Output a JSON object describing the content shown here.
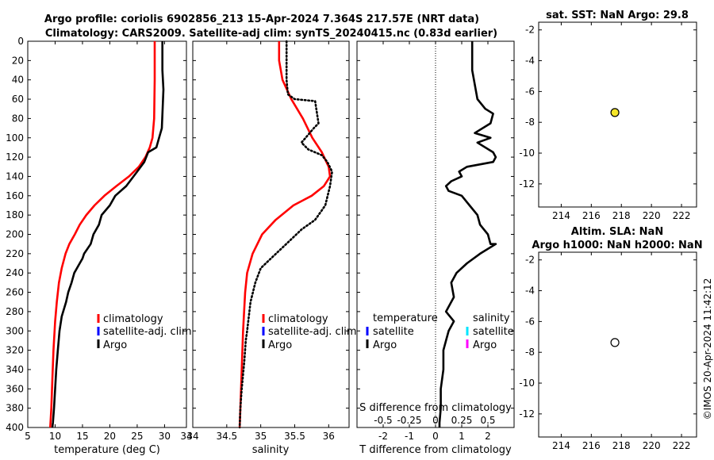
{
  "figure": {
    "title_line1": "Argo profile: coriolis 6902856_213 15-Apr-2024 7.364S 217.57E (NRT data)",
    "title_line2": "Climatology: CARS2009. Satellite-adj clim: synTS_20240415.nc (0.83d earlier)",
    "timestamp": "©IMOS 20-Apr-2024 11:42:12"
  },
  "colors": {
    "climatology": "#ff0000",
    "satellite_adj": "#0000ff",
    "argo": "#000000",
    "sat_salinity": "#00e5ff",
    "argo_salinity_diff": "#ff00ff",
    "sst_marker": "#f5e62a"
  },
  "chart_data": [
    {
      "id": "temperature",
      "type": "line",
      "xlabel": "temperature (deg C)",
      "ylabel": "",
      "xlim": [
        5,
        34
      ],
      "ylim": [
        0,
        400
      ],
      "y_reversed": true,
      "xticks": [
        5,
        10,
        15,
        20,
        25,
        30,
        34
      ],
      "yticks": [
        0,
        20,
        40,
        60,
        80,
        100,
        120,
        140,
        160,
        180,
        200,
        220,
        240,
        260,
        280,
        300,
        320,
        340,
        360,
        380,
        400
      ],
      "legend": [
        "climatology",
        "satellite-adj. clim",
        "Argo"
      ],
      "series": [
        {
          "name": "climatology",
          "color": "#ff0000",
          "style": "solid",
          "x": [
            28.2,
            28.2,
            28.1,
            27.8,
            27.3,
            26.5,
            25.3,
            23.5,
            21.2,
            19.0,
            17.2,
            15.7,
            14.5,
            13.6,
            12.6,
            11.9,
            11.2,
            10.7,
            10.3,
            10.0,
            9.7,
            9.5,
            9.3,
            9.1
          ],
          "y": [
            0,
            40,
            80,
            100,
            110,
            120,
            130,
            140,
            150,
            160,
            170,
            180,
            190,
            200,
            210,
            220,
            235,
            250,
            270,
            290,
            320,
            350,
            380,
            400
          ]
        },
        {
          "name": "Argo",
          "color": "#000000",
          "style": "solid",
          "x": [
            29.6,
            29.6,
            29.8,
            29.5,
            29.0,
            28.5,
            27.0,
            26.3,
            25.0,
            23.0,
            21.0,
            20.0,
            18.5,
            18.0,
            17.0,
            16.5,
            15.3,
            15.0,
            14.5,
            13.5,
            13.0,
            12.4,
            12.0,
            11.2,
            10.8,
            10.5,
            10.2,
            10.0,
            9.8,
            9.6,
            9.5
          ],
          "y": [
            0,
            30,
            50,
            90,
            100,
            110,
            115,
            125,
            135,
            150,
            160,
            170,
            180,
            190,
            200,
            210,
            220,
            225,
            230,
            240,
            250,
            260,
            270,
            285,
            300,
            320,
            340,
            360,
            380,
            395,
            400
          ]
        }
      ]
    },
    {
      "id": "salinity",
      "type": "line",
      "xlabel": "salinity",
      "ylabel": "",
      "xlim": [
        34,
        36.3
      ],
      "ylim": [
        0,
        400
      ],
      "y_reversed": true,
      "xticks": [
        34,
        34.5,
        35,
        35.5,
        36
      ],
      "legend": [
        "climatology",
        "satellite-adj. clim",
        "Argo"
      ],
      "series": [
        {
          "name": "climatology",
          "color": "#ff0000",
          "style": "solid",
          "x": [
            35.27,
            35.27,
            35.32,
            35.45,
            35.62,
            35.76,
            35.9,
            36.0,
            36.02,
            35.93,
            35.75,
            35.48,
            35.22,
            35.02,
            34.88,
            34.8,
            34.77,
            34.74,
            34.72,
            34.7,
            34.69
          ],
          "y": [
            0,
            20,
            40,
            60,
            80,
            100,
            115,
            130,
            140,
            150,
            160,
            170,
            185,
            200,
            220,
            240,
            260,
            300,
            340,
            380,
            400
          ]
        },
        {
          "name": "Argo",
          "color": "#000000",
          "style": "dotted",
          "x": [
            35.38,
            35.38,
            35.4,
            35.5,
            35.8,
            35.85,
            35.78,
            35.66,
            35.6,
            35.7,
            35.9,
            35.98,
            36.05,
            36.02,
            35.95,
            35.8,
            35.6,
            35.45,
            35.3,
            35.15,
            35.0,
            34.92,
            34.85,
            34.8,
            34.78,
            34.76,
            34.72,
            34.7,
            34.69
          ],
          "y": [
            0,
            40,
            55,
            60,
            62,
            85,
            90,
            100,
            105,
            112,
            118,
            125,
            135,
            150,
            170,
            185,
            195,
            205,
            215,
            225,
            235,
            250,
            270,
            300,
            310,
            330,
            360,
            380,
            400
          ]
        }
      ]
    },
    {
      "id": "difference",
      "type": "line",
      "xlabel": "T difference from climatology",
      "xlabel_top": "S difference from climatology",
      "ylabel": "",
      "xlim": [
        -3,
        3
      ],
      "ylim": [
        0,
        400
      ],
      "y_reversed": true,
      "xticks": [
        -2,
        -1,
        0,
        1,
        2
      ],
      "xticks_top": [
        "-0.5",
        "-0.25",
        "0",
        "0.25",
        "0.5"
      ],
      "legend_temperature_title": "temperature",
      "legend_salinity_title": "salinity",
      "legend_temperature": [
        "satellite",
        "Argo"
      ],
      "legend_salinity": [
        "satellite",
        "Argo"
      ],
      "series": [
        {
          "name": "Argo T diff",
          "color": "#000000",
          "style": "solid",
          "x": [
            1.4,
            1.4,
            1.6,
            1.9,
            2.2,
            2.1,
            1.5,
            2.1,
            1.6,
            2.2,
            2.3,
            2.2,
            1.2,
            0.9,
            1.0,
            0.6,
            0.4,
            0.5,
            1.0,
            1.3,
            1.6,
            1.7,
            2.0,
            2.1,
            2.3,
            1.7,
            1.2,
            0.8,
            0.6,
            0.7,
            0.4,
            0.7,
            0.5,
            0.4,
            0.3,
            0.3,
            0.2,
            0.2,
            0.15,
            0.15
          ],
          "y": [
            0,
            30,
            60,
            70,
            75,
            85,
            95,
            100,
            105,
            115,
            120,
            125,
            130,
            135,
            140,
            145,
            150,
            155,
            160,
            170,
            180,
            190,
            200,
            210,
            210,
            220,
            230,
            240,
            250,
            265,
            280,
            290,
            300,
            310,
            320,
            340,
            360,
            380,
            395,
            400
          ]
        }
      ]
    },
    {
      "id": "sst",
      "type": "scatter",
      "title": "sat. SST: NaN Argo: 29.8",
      "xlabel": "",
      "ylabel": "",
      "xlim": [
        212.5,
        223
      ],
      "ylim": [
        -13.5,
        -1.5
      ],
      "xticks": [
        214,
        216,
        218,
        220,
        222
      ],
      "yticks": [
        -2,
        -4,
        -6,
        -8,
        -10,
        -12
      ],
      "points": [
        {
          "x": 217.57,
          "y": -7.364,
          "fill": "#f5e62a"
        }
      ]
    },
    {
      "id": "sla",
      "type": "scatter",
      "title_line1": "Altim. SLA: NaN",
      "title_line2": "Argo h1000: NaN h2000: NaN",
      "xlabel": "",
      "ylabel": "",
      "xlim": [
        212.5,
        223
      ],
      "ylim": [
        -13.5,
        -1.5
      ],
      "xticks": [
        214,
        216,
        218,
        220,
        222
      ],
      "yticks": [
        -2,
        -4,
        -6,
        -8,
        -10,
        -12
      ],
      "points": [
        {
          "x": 217.57,
          "y": -7.364,
          "fill": "#ffffff"
        }
      ]
    }
  ]
}
